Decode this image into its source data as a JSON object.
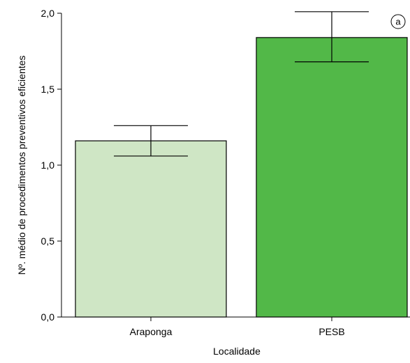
{
  "chart_data": {
    "type": "bar",
    "categories": [
      "Araponga",
      "PESB"
    ],
    "values": [
      1.16,
      1.84
    ],
    "error_low": [
      1.06,
      1.68
    ],
    "error_high": [
      1.26,
      2.01
    ],
    "xlabel": "Localidade",
    "ylabel": "Nº. médio de procedimentos preventivos eficientes",
    "ylim": [
      0,
      2.0
    ],
    "yticks": [
      0,
      0.5,
      1.0,
      1.5,
      2.0
    ],
    "ytick_labels": [
      "0,0",
      "0,5",
      "1,0",
      "1,5",
      "2,0"
    ],
    "panel_label": "a",
    "bar_colors": [
      "#cfe6c5",
      "#52b848"
    ],
    "bar_stroke": "#000000",
    "grid": false
  }
}
